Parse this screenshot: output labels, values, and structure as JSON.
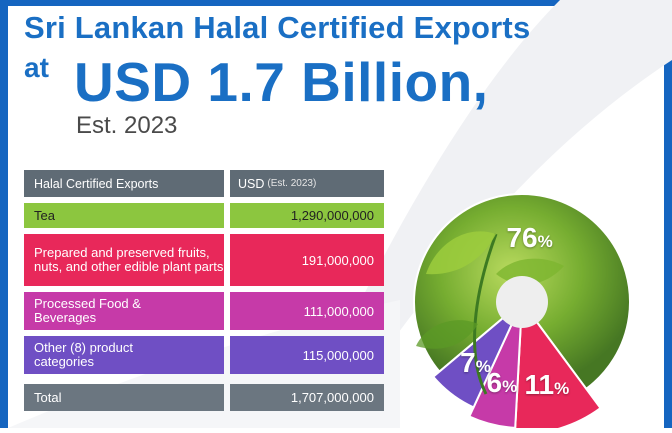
{
  "title": {
    "line1": "Sri Lankan Halal Certified Exports",
    "at": "at",
    "amount": "USD 1.7 Billion,",
    "est": "Est. 2023"
  },
  "table": {
    "header": {
      "category": "Halal Certified Exports",
      "usd": "USD",
      "usd_note": "(Est. 2023)"
    },
    "rows": [
      {
        "category": "Tea",
        "value": "1,290,000,000",
        "color": "#8cc63f"
      },
      {
        "category": "Prepared and preserved fruits, nuts, and other edible plant parts",
        "value": "191,000,000",
        "color": "#e8285a"
      },
      {
        "category": "Processed Food & Beverages",
        "value": "111,000,000",
        "color": "#c63aa8"
      },
      {
        "category": "Other (8) product categories",
        "value": "115,000,000",
        "color": "#6f4fc4"
      }
    ],
    "total": {
      "category": "Total",
      "value": "1,707,000,000"
    }
  },
  "chart_data": {
    "type": "pie",
    "title": "",
    "slices": [
      {
        "label": "Tea",
        "value": 76,
        "display": "76",
        "unit": "%",
        "color": "#8cc63f"
      },
      {
        "label": "Prepared and preserved fruits, nuts, and other edible plant parts",
        "value": 11,
        "display": "11",
        "unit": "%",
        "color": "#e8285a"
      },
      {
        "label": "Processed Food & Beverages",
        "value": 6,
        "display": "6",
        "unit": "%",
        "color": "#c63aa8"
      },
      {
        "label": "Other (8) product categories",
        "value": 7,
        "display": "7",
        "unit": "%",
        "color": "#6f4fc4"
      }
    ]
  },
  "colors": {
    "title_blue": "#1a6fc4",
    "frame_blue": "#1565c0",
    "header_gray": "#5f6b75",
    "total_gray": "#6b7680",
    "hole": "#eeeeee"
  }
}
